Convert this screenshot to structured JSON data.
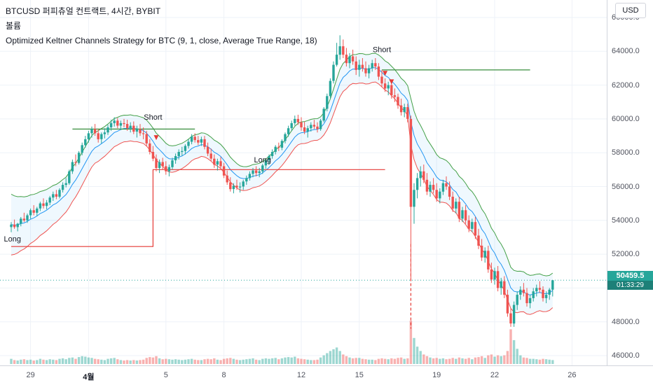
{
  "header": {
    "symbol_line": "BTCUSD 퍼피츄얼 컨트랙트, 4시간, BYBIT",
    "volume_line": "볼륨",
    "strategy_line": "Optimized Keltner Channels Strategy for BTC (9, 1, close, Average True Range, 18)",
    "currency_button": "USD"
  },
  "colors": {
    "up": "#26a69a",
    "down": "#ef5350",
    "vol_up": "rgba(38,166,154,0.45)",
    "vol_down": "rgba(239,83,80,0.45)",
    "kc_upper": "#43a047",
    "kc_lower": "#ef5350",
    "kc_mid": "#2196f3",
    "kc_fill": "rgba(33,150,243,0.07)",
    "trade_green": "#388e3c",
    "trade_red": "#e53935",
    "price_line": "#26a69a",
    "badge_bg": "#26a69a",
    "badge_countdown_bg": "#1d8078",
    "grid": "#eef2f8",
    "axis_text": "#50535e",
    "text": "#131722"
  },
  "chart_data": {
    "type": "candlestick",
    "symbol": "BTCUSD",
    "exchange": "BYBIT",
    "interval": "4시간",
    "strategy": "Optimized Keltner Channels Strategy for BTC (9, 1, close, Average True Range, 18)",
    "keltner": {
      "length": 9,
      "mult": 1,
      "source": "close",
      "bands_style": "Average True Range",
      "atr_length": 18
    },
    "current_price": 50459.5,
    "current_price_label": "50459.5",
    "countdown": "01:33:29",
    "y_axis": {
      "min": 46000,
      "max": 66000,
      "tick_step": 2000,
      "format_decimals": 1,
      "ticks": [
        46000,
        48000,
        50000,
        52000,
        54000,
        56000,
        58000,
        60000,
        62000,
        64000,
        66000
      ]
    },
    "x_axis": {
      "labels": [
        {
          "index": 6,
          "text": "29"
        },
        {
          "index": 24,
          "text": "4월",
          "bold": true
        },
        {
          "index": 48,
          "text": "5"
        },
        {
          "index": 66,
          "text": "8"
        },
        {
          "index": 90,
          "text": "12"
        },
        {
          "index": 108,
          "text": "15"
        },
        {
          "index": 132,
          "text": "19"
        },
        {
          "index": 150,
          "text": "22"
        },
        {
          "index": 174,
          "text": "26"
        }
      ]
    },
    "candles": [
      [
        53600,
        53900,
        53300,
        53750,
        12
      ],
      [
        53750,
        54050,
        53500,
        53600,
        9
      ],
      [
        53600,
        53850,
        53350,
        53800,
        8
      ],
      [
        53800,
        54200,
        53650,
        54100,
        10
      ],
      [
        54100,
        54450,
        53900,
        54000,
        11
      ],
      [
        54000,
        54400,
        53850,
        54300,
        9
      ],
      [
        54300,
        54700,
        54100,
        54600,
        10
      ],
      [
        54600,
        54900,
        54300,
        54450,
        8
      ],
      [
        54450,
        54800,
        54250,
        54700,
        9
      ],
      [
        54700,
        55100,
        54550,
        55000,
        12
      ],
      [
        55000,
        55300,
        54700,
        54850,
        10
      ],
      [
        54850,
        55200,
        54650,
        55050,
        9
      ],
      [
        55050,
        55450,
        54900,
        55350,
        11
      ],
      [
        55350,
        55700,
        55150,
        55550,
        10
      ],
      [
        55550,
        55800,
        55250,
        55400,
        9
      ],
      [
        55400,
        55900,
        55300,
        55800,
        12
      ],
      [
        55800,
        56250,
        55650,
        56100,
        13
      ],
      [
        56100,
        56500,
        55950,
        56200,
        11
      ],
      [
        56200,
        57000,
        56100,
        56900,
        14
      ],
      [
        56900,
        57600,
        56750,
        57450,
        15
      ],
      [
        57450,
        57900,
        57200,
        57400,
        12
      ],
      [
        57400,
        58100,
        57300,
        58000,
        16
      ],
      [
        58000,
        58600,
        57850,
        58450,
        18
      ],
      [
        58450,
        59000,
        58300,
        58800,
        17
      ],
      [
        58800,
        59300,
        58600,
        59150,
        15
      ],
      [
        59150,
        59550,
        58900,
        59400,
        14
      ],
      [
        59400,
        59700,
        59000,
        59150,
        12
      ],
      [
        59150,
        59400,
        58600,
        58800,
        11
      ],
      [
        58800,
        59200,
        58550,
        59100,
        10
      ],
      [
        59100,
        59450,
        58850,
        59200,
        9
      ],
      [
        59200,
        59650,
        59050,
        59500,
        12
      ],
      [
        59500,
        59950,
        59300,
        59750,
        13
      ],
      [
        59750,
        60100,
        59550,
        59900,
        14
      ],
      [
        59900,
        60050,
        59450,
        59600,
        11
      ],
      [
        59600,
        59900,
        59350,
        59750,
        9
      ],
      [
        59750,
        60000,
        59500,
        59700,
        8
      ],
      [
        59700,
        59950,
        59300,
        59450,
        9
      ],
      [
        59450,
        59800,
        59200,
        59600,
        8
      ],
      [
        59600,
        59850,
        59100,
        59250,
        9
      ],
      [
        59250,
        59600,
        58900,
        59400,
        8
      ],
      [
        59400,
        59700,
        59000,
        59150,
        9
      ],
      [
        59150,
        59500,
        58800,
        59100,
        10
      ],
      [
        59100,
        59300,
        58400,
        58550,
        14
      ],
      [
        58550,
        58800,
        57900,
        58050,
        16
      ],
      [
        58050,
        58400,
        57500,
        57650,
        15
      ],
      [
        57650,
        57900,
        56900,
        57100,
        18
      ],
      [
        57100,
        57600,
        56800,
        57450,
        13
      ],
      [
        57450,
        57700,
        57000,
        57200,
        11
      ],
      [
        57200,
        57500,
        56700,
        56900,
        12
      ],
      [
        56900,
        57300,
        56600,
        57150,
        11
      ],
      [
        57150,
        57700,
        57000,
        57550,
        10
      ],
      [
        57550,
        57950,
        57350,
        57800,
        11
      ],
      [
        57800,
        58200,
        57600,
        58050,
        10
      ],
      [
        58050,
        58350,
        57800,
        58100,
        9
      ],
      [
        58100,
        58500,
        57900,
        58400,
        10
      ],
      [
        58400,
        58800,
        58250,
        58650,
        11
      ],
      [
        58650,
        59100,
        58500,
        58950,
        12
      ],
      [
        58950,
        59150,
        58600,
        58750,
        10
      ],
      [
        58750,
        59000,
        58450,
        58600,
        9
      ],
      [
        58600,
        58950,
        58400,
        58800,
        9
      ],
      [
        58800,
        59000,
        58200,
        58350,
        11
      ],
      [
        58350,
        58600,
        57800,
        57950,
        12
      ],
      [
        57950,
        58250,
        57500,
        57650,
        11
      ],
      [
        57650,
        57900,
        57100,
        57300,
        13
      ],
      [
        57300,
        57650,
        56950,
        57500,
        10
      ],
      [
        57500,
        57750,
        57050,
        57200,
        9
      ],
      [
        57200,
        57400,
        56500,
        56650,
        12
      ],
      [
        56650,
        56950,
        56100,
        56250,
        13
      ],
      [
        56250,
        56550,
        55700,
        55850,
        14
      ],
      [
        55850,
        56200,
        55600,
        56050,
        12
      ],
      [
        56050,
        56400,
        55800,
        55950,
        10
      ],
      [
        55950,
        56250,
        55650,
        56000,
        9
      ],
      [
        56000,
        56400,
        55800,
        56300,
        10
      ],
      [
        56300,
        56650,
        56100,
        56500,
        11
      ],
      [
        56500,
        56900,
        56350,
        56750,
        12
      ],
      [
        56750,
        57100,
        56550,
        56950,
        13
      ],
      [
        56950,
        57200,
        56600,
        56800,
        10
      ],
      [
        56800,
        57100,
        56550,
        56900,
        9
      ],
      [
        56900,
        57350,
        56750,
        57250,
        12
      ],
      [
        57250,
        57650,
        57050,
        57550,
        13
      ],
      [
        57550,
        57900,
        57300,
        57800,
        12
      ],
      [
        57800,
        58200,
        57650,
        58050,
        13
      ],
      [
        58050,
        58450,
        57900,
        58350,
        14
      ],
      [
        58350,
        58600,
        58100,
        58300,
        11
      ],
      [
        58300,
        58800,
        58150,
        58700,
        13
      ],
      [
        58700,
        59200,
        58550,
        59100,
        15
      ],
      [
        59100,
        59600,
        58950,
        59450,
        16
      ],
      [
        59450,
        59900,
        59300,
        59750,
        15
      ],
      [
        59750,
        60200,
        59600,
        60000,
        17
      ],
      [
        60000,
        60250,
        59650,
        59800,
        13
      ],
      [
        59800,
        60100,
        59300,
        59500,
        12
      ],
      [
        59500,
        59850,
        59100,
        59250,
        11
      ],
      [
        59250,
        59600,
        58900,
        59450,
        10
      ],
      [
        59450,
        59800,
        59250,
        59650,
        9
      ],
      [
        59650,
        59950,
        59400,
        59550,
        9
      ],
      [
        59550,
        59800,
        59200,
        59400,
        10
      ],
      [
        59400,
        60000,
        59300,
        59900,
        15
      ],
      [
        59900,
        60700,
        59800,
        60600,
        20
      ],
      [
        60600,
        61500,
        60450,
        61350,
        25
      ],
      [
        61350,
        62400,
        61200,
        62250,
        30
      ],
      [
        62250,
        63400,
        62100,
        63200,
        34
      ],
      [
        63200,
        64500,
        63100,
        63800,
        38
      ],
      [
        63800,
        64950,
        63500,
        64300,
        30
      ],
      [
        64300,
        64700,
        63600,
        63800,
        22
      ],
      [
        63800,
        64200,
        63100,
        63300,
        18
      ],
      [
        63300,
        63900,
        63000,
        63700,
        15
      ],
      [
        63700,
        64100,
        63200,
        63400,
        13
      ],
      [
        63400,
        63700,
        62600,
        62900,
        14
      ],
      [
        62900,
        63500,
        62500,
        63200,
        14
      ],
      [
        63200,
        63600,
        62800,
        63000,
        12
      ],
      [
        63000,
        63400,
        62500,
        62700,
        11
      ],
      [
        62700,
        63200,
        62400,
        63000,
        10
      ],
      [
        63000,
        63500,
        62800,
        63300,
        10
      ],
      [
        63300,
        63600,
        62900,
        63100,
        9
      ],
      [
        63100,
        63300,
        62300,
        62500,
        12
      ],
      [
        62500,
        62900,
        61900,
        62100,
        13
      ],
      [
        62100,
        62400,
        61600,
        61800,
        12
      ],
      [
        61800,
        62200,
        61400,
        62000,
        11
      ],
      [
        62000,
        62300,
        61200,
        61400,
        13
      ],
      [
        61400,
        61800,
        61000,
        61300,
        12
      ],
      [
        61300,
        61500,
        60600,
        60800,
        14
      ],
      [
        60800,
        61200,
        60200,
        60400,
        15
      ],
      [
        60400,
        60900,
        60100,
        60700,
        12
      ],
      [
        60700,
        60900,
        59800,
        60000,
        13
      ],
      [
        60000,
        60200,
        50500,
        54800,
        100
      ],
      [
        54800,
        56200,
        53800,
        55800,
        60
      ],
      [
        55800,
        56800,
        55300,
        56500,
        40
      ],
      [
        56500,
        57200,
        56000,
        56900,
        30
      ],
      [
        56900,
        57300,
        56200,
        56400,
        22
      ],
      [
        56400,
        56800,
        55500,
        55700,
        18
      ],
      [
        55700,
        56300,
        55400,
        56100,
        15
      ],
      [
        56100,
        56500,
        55600,
        55800,
        13
      ],
      [
        55800,
        56200,
        55100,
        55300,
        14
      ],
      [
        55300,
        55900,
        55000,
        55700,
        12
      ],
      [
        55700,
        56400,
        55500,
        56200,
        13
      ],
      [
        56200,
        56600,
        55800,
        56000,
        11
      ],
      [
        56000,
        56300,
        55200,
        55400,
        12
      ],
      [
        55400,
        55700,
        54500,
        54700,
        14
      ],
      [
        54700,
        55300,
        54400,
        55100,
        12
      ],
      [
        55100,
        55400,
        53900,
        54100,
        15
      ],
      [
        54100,
        54800,
        53900,
        54600,
        13
      ],
      [
        54600,
        54900,
        53800,
        54000,
        12
      ],
      [
        54000,
        54300,
        53300,
        53500,
        14
      ],
      [
        53500,
        54100,
        53300,
        53900,
        11
      ],
      [
        53900,
        54200,
        52900,
        53100,
        15
      ],
      [
        53100,
        53500,
        52300,
        52500,
        16
      ],
      [
        52500,
        52900,
        51600,
        51800,
        18
      ],
      [
        51800,
        52400,
        51500,
        52200,
        14
      ],
      [
        52200,
        52500,
        50900,
        51100,
        20
      ],
      [
        51100,
        51500,
        50300,
        50500,
        22
      ],
      [
        50500,
        51200,
        50200,
        51000,
        17
      ],
      [
        51000,
        51300,
        49800,
        50000,
        20
      ],
      [
        50000,
        50600,
        49600,
        50400,
        18
      ],
      [
        50400,
        50700,
        49400,
        49600,
        20
      ],
      [
        49600,
        49900,
        48300,
        48500,
        30
      ],
      [
        48500,
        48800,
        47700,
        47900,
        80
      ],
      [
        47900,
        49200,
        47700,
        49000,
        55
      ],
      [
        49000,
        49800,
        48700,
        49600,
        35
      ],
      [
        49600,
        50100,
        49300,
        49900,
        20
      ],
      [
        49900,
        50300,
        49500,
        49700,
        15
      ],
      [
        49700,
        50000,
        48900,
        49100,
        14
      ],
      [
        49100,
        49600,
        48800,
        49400,
        12
      ],
      [
        49400,
        50000,
        49200,
        49800,
        12
      ],
      [
        49800,
        50200,
        49500,
        50000,
        11
      ],
      [
        50000,
        50400,
        49700,
        49900,
        10
      ],
      [
        49900,
        50100,
        49200,
        49400,
        12
      ],
      [
        49400,
        49800,
        49100,
        49600,
        11
      ],
      [
        49600,
        50000,
        49300,
        49900,
        10
      ],
      [
        49900,
        50300,
        49500,
        50459.5,
        9
      ]
    ],
    "trades": {
      "lines": [
        {
          "color": "#e53935",
          "points": [
            [
              0,
              52450
            ],
            [
              44,
              52450
            ],
            [
              44,
              57000
            ],
            [
              116,
              57000
            ]
          ]
        },
        {
          "color": "#388e3c",
          "points": [
            [
              19,
              59400
            ],
            [
              57,
              59400
            ]
          ]
        },
        {
          "color": "#388e3c",
          "points": [
            [
              115,
              62900
            ],
            [
              161,
              62900
            ]
          ]
        },
        {
          "color": "#e53935",
          "dash": "4,3",
          "points": [
            [
              124,
              52600
            ],
            [
              124,
              47600
            ]
          ]
        }
      ],
      "markers": [
        {
          "text": "Long",
          "index": 0.4,
          "price": 52750
        },
        {
          "text": "Short",
          "index": 44,
          "price": 59950
        },
        {
          "text": "Long",
          "index": 78,
          "price": 57430
        },
        {
          "text": "Short",
          "index": 115,
          "price": 63950
        }
      ],
      "arrows": [
        {
          "index": 45,
          "price": 58750
        },
        {
          "index": 116,
          "price": 62550
        },
        {
          "index": 118,
          "price": 62050
        }
      ]
    }
  }
}
